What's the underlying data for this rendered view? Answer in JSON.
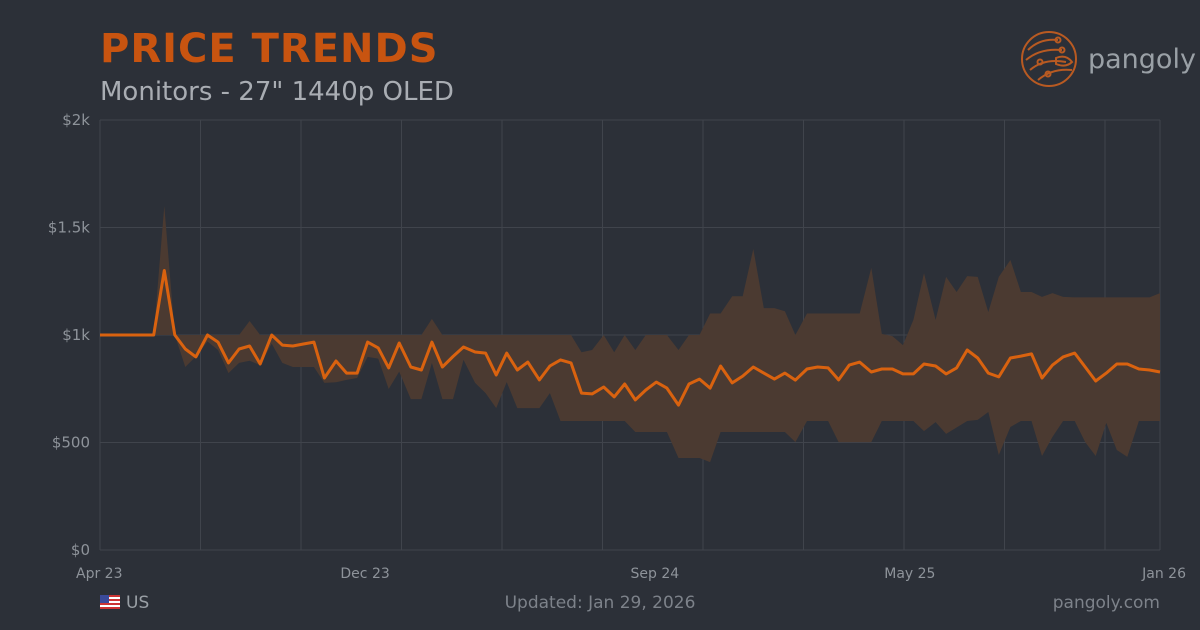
{
  "header": {
    "title": "PRICE TRENDS",
    "subtitle": "Monitors - 27\" 1440p OLED"
  },
  "logo": {
    "text": "pangoly",
    "icon": "pangolin-circuit-icon"
  },
  "footer": {
    "region": "US",
    "region_icon": "us-flag-icon",
    "updated": "Updated: Jan 29, 2026",
    "site": "pangoly.com"
  },
  "colors": {
    "background": "#2c3038",
    "accent": "#c85410",
    "line": "#d9620f",
    "band": "#4b3a31",
    "grid": "#40444c"
  },
  "chart_data": {
    "type": "area",
    "title": "PRICE TRENDS",
    "subtitle": "Monitors - 27\" 1440p OLED",
    "ylim": [
      0,
      2000
    ],
    "xlim": [
      "2023-04-01",
      "2026-01-01"
    ],
    "y_ticks": [
      {
        "v": 0,
        "label": "$0"
      },
      {
        "v": 500,
        "label": "$500"
      },
      {
        "v": 1000,
        "label": "$1k"
      },
      {
        "v": 1500,
        "label": "$1.5k"
      },
      {
        "v": 2000,
        "label": "$2k"
      }
    ],
    "x_ticks": [
      {
        "d": "2023-04-01",
        "label": "Apr 23"
      },
      {
        "d": "2023-12-01",
        "label": "Dec 23"
      },
      {
        "d": "2024-09-01",
        "label": "Sep 24"
      },
      {
        "d": "2025-05-01",
        "label": "May 25"
      },
      {
        "d": "2026-01-01",
        "label": "Jan 26"
      }
    ],
    "grid": true,
    "columns": [
      "date",
      "min",
      "median",
      "max"
    ],
    "points": [
      [
        "2023-04-01",
        1000,
        1000,
        1000
      ],
      [
        "2023-04-11",
        1000,
        1000,
        1000
      ],
      [
        "2023-04-21",
        1000,
        1000,
        1000
      ],
      [
        "2023-05-01",
        1000,
        1000,
        1000
      ],
      [
        "2023-05-12",
        1000,
        1000,
        1000
      ],
      [
        "2023-05-22",
        1000,
        1000,
        1000
      ],
      [
        "2023-06-01",
        1000,
        1300,
        1600
      ],
      [
        "2023-06-11",
        1000,
        1000,
        1000
      ],
      [
        "2023-06-21",
        851,
        935,
        1000
      ],
      [
        "2023-07-01",
        900,
        898,
        1000
      ],
      [
        "2023-07-12",
        970,
        1000,
        1000
      ],
      [
        "2023-07-22",
        930,
        967,
        1000
      ],
      [
        "2023-08-01",
        823,
        870,
        1000
      ],
      [
        "2023-08-11",
        870,
        935,
        1000
      ],
      [
        "2023-08-21",
        880,
        949,
        1065
      ],
      [
        "2023-08-31",
        860,
        865,
        1000
      ],
      [
        "2023-09-11",
        960,
        1000,
        1000
      ],
      [
        "2023-09-21",
        870,
        953,
        1000
      ],
      [
        "2023-10-01",
        851,
        949,
        1000
      ],
      [
        "2023-10-11",
        851,
        958,
        1000
      ],
      [
        "2023-10-21",
        851,
        967,
        1000
      ],
      [
        "2023-10-31",
        777,
        800,
        1000
      ],
      [
        "2023-11-11",
        780,
        879,
        1000
      ],
      [
        "2023-11-21",
        791,
        823,
        1000
      ],
      [
        "2023-12-01",
        800,
        823,
        1000
      ],
      [
        "2023-12-11",
        898,
        967,
        1000
      ],
      [
        "2023-12-21",
        890,
        940,
        1000
      ],
      [
        "2023-12-31",
        749,
        847,
        1000
      ],
      [
        "2024-01-10",
        830,
        963,
        1000
      ],
      [
        "2024-01-21",
        702,
        851,
        1000
      ],
      [
        "2024-01-31",
        702,
        837,
        1000
      ],
      [
        "2024-02-10",
        870,
        967,
        1075
      ],
      [
        "2024-02-20",
        702,
        851,
        1000
      ],
      [
        "2024-03-01",
        702,
        900,
        1000
      ],
      [
        "2024-03-11",
        884,
        944,
        1000
      ],
      [
        "2024-03-22",
        777,
        921,
        1000
      ],
      [
        "2024-04-01",
        730,
        916,
        1000
      ],
      [
        "2024-04-11",
        660,
        814,
        1000
      ],
      [
        "2024-04-21",
        781,
        916,
        1000
      ],
      [
        "2024-05-01",
        660,
        837,
        1000
      ],
      [
        "2024-05-11",
        660,
        874,
        1000
      ],
      [
        "2024-05-22",
        660,
        791,
        1000
      ],
      [
        "2024-06-01",
        730,
        856,
        1000
      ],
      [
        "2024-06-11",
        600,
        884,
        1000
      ],
      [
        "2024-06-21",
        600,
        870,
        1000
      ],
      [
        "2024-07-01",
        600,
        730,
        920
      ],
      [
        "2024-07-11",
        600,
        726,
        930
      ],
      [
        "2024-07-22",
        600,
        758,
        1000
      ],
      [
        "2024-08-01",
        600,
        712,
        920
      ],
      [
        "2024-08-11",
        600,
        772,
        1000
      ],
      [
        "2024-08-21",
        549,
        698,
        930
      ],
      [
        "2024-08-31",
        549,
        744,
        1000
      ],
      [
        "2024-09-10",
        549,
        781,
        1000
      ],
      [
        "2024-09-20",
        549,
        753,
        1000
      ],
      [
        "2024-10-01",
        428,
        674,
        930
      ],
      [
        "2024-10-11",
        428,
        772,
        1000
      ],
      [
        "2024-10-21",
        428,
        795,
        1000
      ],
      [
        "2024-10-31",
        409,
        753,
        1100
      ],
      [
        "2024-11-10",
        549,
        856,
        1100
      ],
      [
        "2024-11-21",
        549,
        777,
        1180
      ],
      [
        "2024-12-01",
        549,
        809,
        1180
      ],
      [
        "2024-12-11",
        549,
        851,
        1400
      ],
      [
        "2024-12-21",
        549,
        823,
        1125
      ],
      [
        "2024-12-31",
        549,
        795,
        1125
      ],
      [
        "2025-01-10",
        549,
        823,
        1110
      ],
      [
        "2025-01-20",
        502,
        790,
        1000
      ],
      [
        "2025-01-31",
        600,
        842,
        1100
      ],
      [
        "2025-02-10",
        600,
        851,
        1100
      ],
      [
        "2025-02-20",
        600,
        847,
        1100
      ],
      [
        "2025-03-02",
        502,
        791,
        1100
      ],
      [
        "2025-03-12",
        502,
        860,
        1100
      ],
      [
        "2025-03-22",
        502,
        874,
        1100
      ],
      [
        "2025-04-02",
        502,
        828,
        1312
      ],
      [
        "2025-04-12",
        600,
        842,
        1005
      ],
      [
        "2025-04-22",
        600,
        842,
        995
      ],
      [
        "2025-05-02",
        600,
        819,
        953
      ],
      [
        "2025-05-12",
        600,
        819,
        1070
      ],
      [
        "2025-05-22",
        553,
        865,
        1288
      ],
      [
        "2025-06-02",
        595,
        856,
        1070
      ],
      [
        "2025-06-12",
        540,
        819,
        1270
      ],
      [
        "2025-06-22",
        570,
        847,
        1200
      ],
      [
        "2025-07-02",
        600,
        930,
        1274
      ],
      [
        "2025-07-12",
        605,
        893,
        1270
      ],
      [
        "2025-07-22",
        642,
        823,
        1107
      ],
      [
        "2025-08-01",
        442,
        805,
        1270
      ],
      [
        "2025-08-12",
        572,
        893,
        1349
      ],
      [
        "2025-08-22",
        600,
        902,
        1200
      ],
      [
        "2025-09-01",
        600,
        912,
        1200
      ],
      [
        "2025-09-11",
        437,
        800,
        1177
      ],
      [
        "2025-09-21",
        526,
        860,
        1195
      ],
      [
        "2025-10-01",
        600,
        898,
        1177
      ],
      [
        "2025-10-12",
        600,
        916,
        1175
      ],
      [
        "2025-10-22",
        502,
        851,
        1175
      ],
      [
        "2025-11-01",
        437,
        786,
        1175
      ],
      [
        "2025-11-11",
        591,
        823,
        1175
      ],
      [
        "2025-11-21",
        465,
        865,
        1175
      ],
      [
        "2025-12-01",
        433,
        865,
        1175
      ],
      [
        "2025-12-12",
        600,
        842,
        1175
      ],
      [
        "2025-12-22",
        600,
        837,
        1175
      ],
      [
        "2026-01-01",
        600,
        828,
        1195
      ]
    ]
  }
}
